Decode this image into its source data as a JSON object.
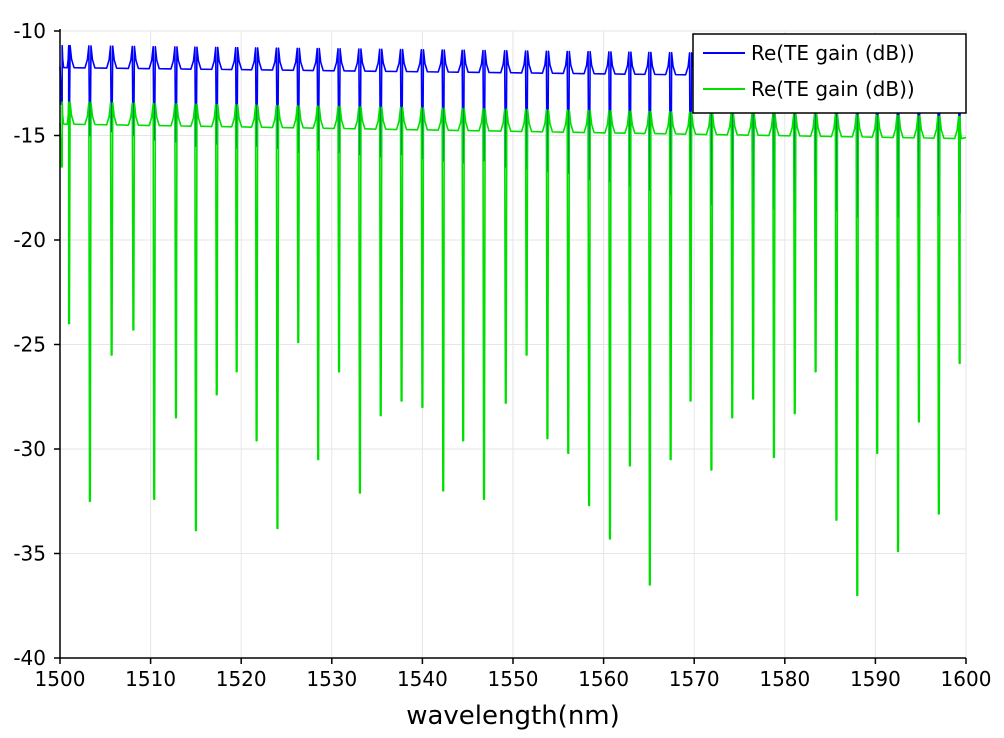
{
  "chart_data": {
    "type": "line",
    "title": "",
    "xlabel": "wavelength(nm)",
    "ylabel": "",
    "xlim": [
      1500,
      1600
    ],
    "ylim": [
      -40,
      -10
    ],
    "x_ticks": [
      "1500",
      "1510",
      "1520",
      "1530",
      "1540",
      "1550",
      "1560",
      "1570",
      "1580",
      "1590",
      "1600"
    ],
    "y_ticks": [
      "-10",
      "-15",
      "-20",
      "-25",
      "-30",
      "-35",
      "-40"
    ],
    "grid": true,
    "legend_position": "top-right",
    "dip_wavelengths": [
      1500.2,
      1501.0,
      1503.3,
      1505.7,
      1508.1,
      1510.4,
      1512.8,
      1515.0,
      1517.3,
      1519.5,
      1521.7,
      1524.0,
      1526.3,
      1528.5,
      1530.8,
      1533.1,
      1535.4,
      1537.7,
      1540.0,
      1542.3,
      1544.5,
      1546.8,
      1549.2,
      1551.5,
      1553.8,
      1556.1,
      1558.4,
      1560.7,
      1562.9,
      1565.1,
      1567.4,
      1569.6,
      1571.9,
      1574.2,
      1576.5,
      1578.8,
      1581.1,
      1583.4,
      1585.7,
      1588.0,
      1590.2,
      1592.5,
      1594.8,
      1597.0,
      1599.3
    ],
    "series": [
      {
        "name": "Re(TE gain (dB))",
        "color": "#0000ff",
        "baseline_start": -11.7,
        "baseline_end": -12.2,
        "dip_minima": [
          -13.5,
          -14.5,
          -15.0,
          -14.8,
          -15.0,
          -15.2,
          -15.3,
          -15.5,
          -15.4,
          -15.6,
          -15.5,
          -15.6,
          -15.8,
          -15.7,
          -15.8,
          -15.9,
          -16.0,
          -15.9,
          -16.1,
          -16.2,
          -16.3,
          -16.2,
          -16.5,
          -16.6,
          -16.7,
          -16.8,
          -17.1,
          -17.2,
          -17.4,
          -17.6,
          -17.8,
          -18.1,
          -18.3,
          -18.5,
          -18.6,
          -18.5,
          -18.7,
          -18.8,
          -18.6,
          -18.9,
          -18.8,
          -18.9,
          -18.7,
          -18.8,
          -18.7
        ]
      },
      {
        "name": "Re(TE gain (dB))",
        "color": "#00e000",
        "baseline_start": -14.4,
        "baseline_end": -15.1,
        "dip_minima": [
          -16.5,
          -24.0,
          -32.5,
          -25.5,
          -24.3,
          -32.4,
          -28.5,
          -33.9,
          -27.4,
          -26.3,
          -29.6,
          -33.8,
          -24.9,
          -30.5,
          -26.3,
          -32.1,
          -28.4,
          -27.7,
          -28.0,
          -32.0,
          -29.6,
          -32.4,
          -27.8,
          -25.5,
          -29.5,
          -30.2,
          -32.7,
          -34.3,
          -30.8,
          -36.5,
          -30.5,
          -27.7,
          -31.0,
          -28.5,
          -27.6,
          -30.4,
          -28.3,
          -26.3,
          -33.4,
          -37.0,
          -30.2,
          -34.9,
          -28.7,
          -33.1,
          -25.9
        ]
      }
    ]
  }
}
